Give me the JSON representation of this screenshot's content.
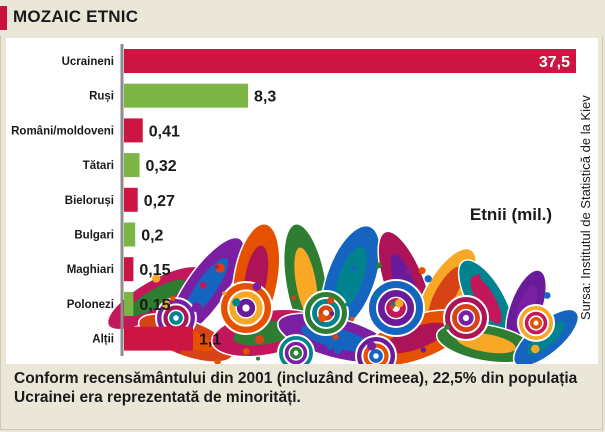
{
  "header": {
    "title": "MOZAIC ETNIC"
  },
  "footer": {
    "text": "Conform recensământului din 2001 (incluzând Crimeea), 22,5% din populația Ucrainei era reprezentată de minorități."
  },
  "source": {
    "text": "Sursa: Institutul de Statistică de la Kiev"
  },
  "colors": {
    "red": "#cc1542",
    "green": "#7ab545",
    "accent": "#c8123a"
  },
  "chart_data": {
    "type": "bar",
    "orientation": "horizontal",
    "title": "Etnii (mil.)",
    "categories": [
      "Ucraineni",
      "Ruși",
      "Români/moldoveni",
      "Tătari",
      "Bieloruși",
      "Bulgari",
      "Maghiari",
      "Polonezi",
      "Alții"
    ],
    "values": [
      37.5,
      8.3,
      0.41,
      0.32,
      0.27,
      0.2,
      0.15,
      0.15,
      1.1
    ],
    "labels": [
      "37,5",
      "8,3",
      "0,41",
      "0,32",
      "0,27",
      "0,2",
      "0,15",
      "0,15",
      "1,1"
    ],
    "bar_colors": [
      "red",
      "green",
      "red",
      "green",
      "red",
      "green",
      "red",
      "green",
      "red"
    ],
    "grid": false,
    "legend": "none"
  }
}
